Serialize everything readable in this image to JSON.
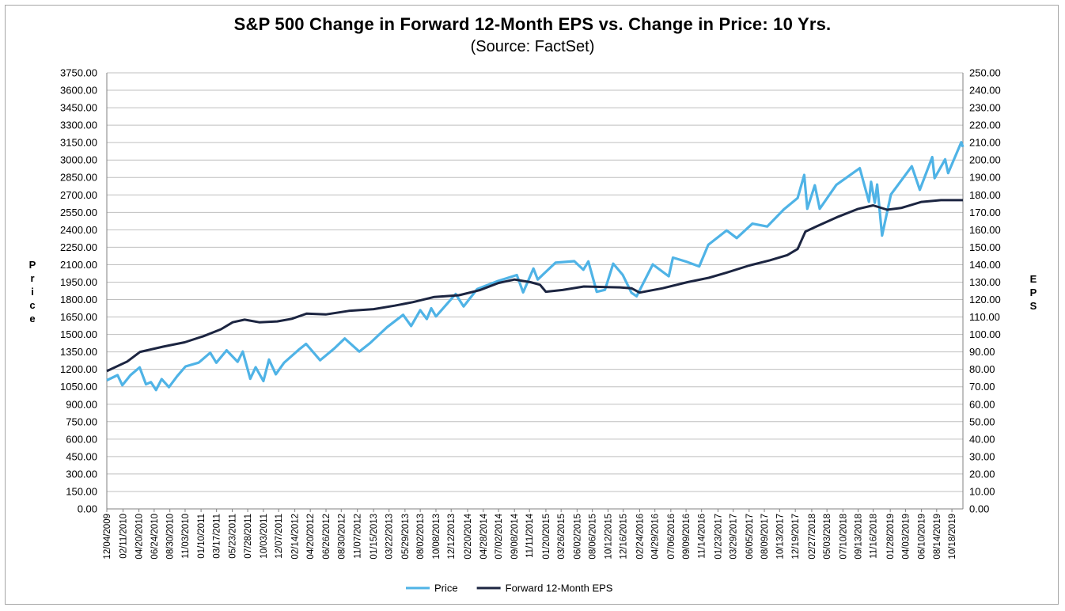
{
  "chart_data": {
    "type": "line",
    "title": "S&P 500 Change in Forward 12-Month EPS vs. Change in Price: 10 Yrs.",
    "subtitle": "(Source: FactSet)",
    "ylabel_left": "Price",
    "ylabel_right": "EPS",
    "ylim_left": [
      0,
      3750
    ],
    "ylim_right": [
      0,
      250
    ],
    "yticks_left": [
      "0.00",
      "150.00",
      "300.00",
      "450.00",
      "600.00",
      "750.00",
      "900.00",
      "1050.00",
      "1200.00",
      "1350.00",
      "1500.00",
      "1650.00",
      "1800.00",
      "1950.00",
      "2100.00",
      "2250.00",
      "2400.00",
      "2550.00",
      "2700.00",
      "2850.00",
      "3000.00",
      "3150.00",
      "3300.00",
      "3450.00",
      "3600.00",
      "3750.00"
    ],
    "yticks_right": [
      "0.00",
      "10.00",
      "20.00",
      "30.00",
      "40.00",
      "50.00",
      "60.00",
      "70.00",
      "80.00",
      "90.00",
      "100.00",
      "110.00",
      "120.00",
      "130.00",
      "140.00",
      "150.00",
      "160.00",
      "170.00",
      "180.00",
      "190.00",
      "200.00",
      "210.00",
      "220.00",
      "230.00",
      "240.00",
      "250.00"
    ],
    "xticks": [
      "12/04/2009",
      "02/11/2010",
      "04/20/2010",
      "06/24/2010",
      "08/30/2010",
      "11/03/2010",
      "01/10/2011",
      "03/17/2011",
      "05/23/2011",
      "07/28/2011",
      "10/03/2011",
      "12/07/2011",
      "02/14/2012",
      "04/20/2012",
      "06/26/2012",
      "08/30/2012",
      "11/07/2012",
      "01/15/2013",
      "03/22/2013",
      "05/29/2013",
      "08/02/2013",
      "10/08/2013",
      "12/12/2013",
      "02/20/2014",
      "04/28/2014",
      "07/02/2014",
      "09/08/2014",
      "11/11/2014",
      "01/20/2015",
      "03/26/2015",
      "06/02/2015",
      "08/06/2015",
      "10/12/2015",
      "12/16/2015",
      "02/24/2016",
      "04/29/2016",
      "07/06/2016",
      "09/09/2016",
      "11/14/2016",
      "01/23/2017",
      "03/29/2017",
      "06/05/2017",
      "08/09/2017",
      "10/13/2017",
      "12/19/2017",
      "02/27/2018",
      "05/03/2018",
      "07/10/2018",
      "09/13/2018",
      "11/16/2018",
      "01/28/2019",
      "04/03/2019",
      "06/10/2019",
      "08/14/2019",
      "10/18/2019"
    ],
    "x_start": "12/04/2009",
    "x_end": "12/04/2019",
    "grid": true,
    "legend": "bottom",
    "series": [
      {
        "name": "Price",
        "axis": "left",
        "color": "#4fb3e6",
        "points": [
          [
            "12/04/2009",
            1106
          ],
          [
            "01/19/2010",
            1150
          ],
          [
            "02/08/2010",
            1064
          ],
          [
            "03/15/2010",
            1150
          ],
          [
            "04/23/2010",
            1217
          ],
          [
            "05/20/2010",
            1071
          ],
          [
            "06/10/2010",
            1090
          ],
          [
            "07/02/2010",
            1022
          ],
          [
            "07/26/2010",
            1116
          ],
          [
            "08/26/2010",
            1047
          ],
          [
            "09/30/2010",
            1141
          ],
          [
            "11/05/2010",
            1225
          ],
          [
            "12/31/2010",
            1258
          ],
          [
            "02/18/2011",
            1343
          ],
          [
            "03/16/2011",
            1257
          ],
          [
            "04/29/2011",
            1364
          ],
          [
            "06/15/2011",
            1265
          ],
          [
            "07/07/2011",
            1353
          ],
          [
            "08/08/2011",
            1119
          ],
          [
            "08/31/2011",
            1218
          ],
          [
            "10/03/2011",
            1099
          ],
          [
            "10/27/2011",
            1284
          ],
          [
            "11/25/2011",
            1158
          ],
          [
            "12/30/2011",
            1257
          ],
          [
            "02/29/2012",
            1366
          ],
          [
            "04/02/2012",
            1419
          ],
          [
            "06/01/2012",
            1278
          ],
          [
            "07/31/2012",
            1379
          ],
          [
            "09/14/2012",
            1465
          ],
          [
            "11/15/2012",
            1353
          ],
          [
            "12/31/2012",
            1426
          ],
          [
            "03/14/2013",
            1563
          ],
          [
            "05/21/2013",
            1669
          ],
          [
            "06/24/2013",
            1573
          ],
          [
            "08/02/2013",
            1709
          ],
          [
            "08/30/2013",
            1633
          ],
          [
            "09/18/2013",
            1725
          ],
          [
            "10/08/2013",
            1655
          ],
          [
            "12/31/2013",
            1848
          ],
          [
            "02/03/2014",
            1741
          ],
          [
            "04/02/2014",
            1890
          ],
          [
            "06/30/2014",
            1960
          ],
          [
            "09/18/2014",
            2011
          ],
          [
            "10/15/2014",
            1862
          ],
          [
            "11/28/2014",
            2067
          ],
          [
            "12/16/2014",
            1972
          ],
          [
            "03/02/2015",
            2117
          ],
          [
            "05/21/2015",
            2130
          ],
          [
            "06/29/2015",
            2057
          ],
          [
            "07/20/2015",
            2128
          ],
          [
            "08/25/2015",
            1867
          ],
          [
            "09/29/2015",
            1884
          ],
          [
            "11/03/2015",
            2109
          ],
          [
            "12/14/2015",
            2012
          ],
          [
            "01/20/2016",
            1859
          ],
          [
            "02/11/2016",
            1829
          ],
          [
            "04/20/2016",
            2102
          ],
          [
            "06/27/2016",
            2000
          ],
          [
            "07/15/2016",
            2161
          ],
          [
            "09/09/2016",
            2127
          ],
          [
            "11/04/2016",
            2085
          ],
          [
            "12/13/2016",
            2271
          ],
          [
            "03/01/2017",
            2395
          ],
          [
            "04/13/2017",
            2329
          ],
          [
            "06/19/2017",
            2453
          ],
          [
            "08/21/2017",
            2428
          ],
          [
            "10/31/2017",
            2575
          ],
          [
            "12/29/2017",
            2673
          ],
          [
            "01/26/2018",
            2872
          ],
          [
            "02/08/2018",
            2581
          ],
          [
            "03/12/2018",
            2783
          ],
          [
            "04/02/2018",
            2581
          ],
          [
            "06/12/2018",
            2786
          ],
          [
            "08/31/2018",
            2901
          ],
          [
            "09/20/2018",
            2930
          ],
          [
            "10/29/2018",
            2641
          ],
          [
            "11/07/2018",
            2813
          ],
          [
            "11/23/2018",
            2632
          ],
          [
            "12/03/2018",
            2790
          ],
          [
            "12/24/2018",
            2351
          ],
          [
            "01/31/2019",
            2704
          ],
          [
            "04/30/2019",
            2946
          ],
          [
            "06/03/2019",
            2744
          ],
          [
            "07/26/2019",
            3025
          ],
          [
            "08/05/2019",
            2844
          ],
          [
            "09/19/2019",
            3006
          ],
          [
            "10/02/2019",
            2888
          ],
          [
            "11/27/2019",
            3153
          ],
          [
            "12/04/2019",
            3112
          ]
        ]
      },
      {
        "name": "Forward 12-Month EPS",
        "axis": "right",
        "color": "#1c2541",
        "points": [
          [
            "12/04/2009",
            79
          ],
          [
            "03/01/2010",
            84.5
          ],
          [
            "04/25/2010",
            90
          ],
          [
            "08/01/2010",
            93
          ],
          [
            "11/01/2010",
            95.5
          ],
          [
            "01/20/2011",
            99
          ],
          [
            "04/05/2011",
            103
          ],
          [
            "05/25/2011",
            107
          ],
          [
            "07/15/2011",
            108.5
          ],
          [
            "09/15/2011",
            107
          ],
          [
            "12/01/2011",
            107.5
          ],
          [
            "02/01/2012",
            109
          ],
          [
            "04/05/2012",
            112
          ],
          [
            "06/25/2012",
            111.5
          ],
          [
            "10/01/2012",
            113.5
          ],
          [
            "01/15/2013",
            114.5
          ],
          [
            "04/15/2013",
            116.5
          ],
          [
            "07/01/2013",
            118.5
          ],
          [
            "10/01/2013",
            121.5
          ],
          [
            "01/15/2014",
            122.5
          ],
          [
            "04/15/2014",
            125.5
          ],
          [
            "07/01/2014",
            129.5
          ],
          [
            "09/08/2014",
            131.5
          ],
          [
            "11/15/2014",
            130
          ],
          [
            "12/26/2014",
            128.5
          ],
          [
            "01/20/2015",
            124.5
          ],
          [
            "04/01/2015",
            125.5
          ],
          [
            "07/01/2015",
            127.5
          ],
          [
            "12/01/2015",
            127
          ],
          [
            "01/20/2016",
            126.5
          ],
          [
            "02/24/2016",
            124
          ],
          [
            "06/01/2016",
            126.5
          ],
          [
            "09/15/2016",
            130
          ],
          [
            "12/15/2016",
            132.5
          ],
          [
            "03/01/2017",
            135.5
          ],
          [
            "06/05/2017",
            139.5
          ],
          [
            "09/01/2017",
            142.5
          ],
          [
            "11/15/2017",
            145.5
          ],
          [
            "12/29/2017",
            149
          ],
          [
            "01/31/2018",
            159
          ],
          [
            "03/20/2018",
            162
          ],
          [
            "06/20/2018",
            167.5
          ],
          [
            "09/13/2018",
            172
          ],
          [
            "11/16/2018",
            174
          ],
          [
            "01/15/2019",
            171.5
          ],
          [
            "03/15/2019",
            172.5
          ],
          [
            "06/10/2019",
            176
          ],
          [
            "09/01/2019",
            177
          ],
          [
            "12/04/2019",
            177
          ]
        ]
      }
    ]
  }
}
